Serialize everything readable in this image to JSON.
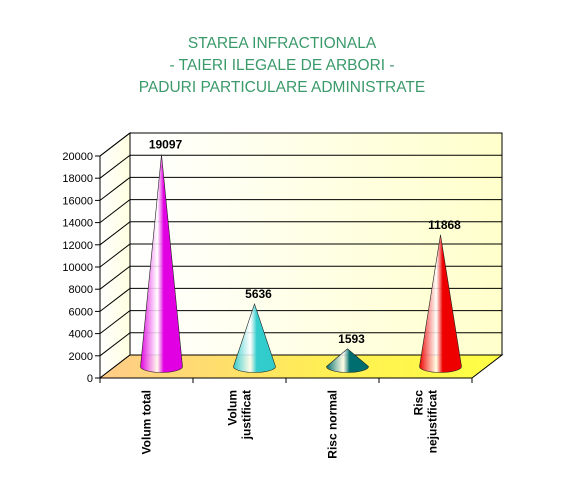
{
  "chart_data": {
    "type": "bar",
    "bar_shape": "cone",
    "title_lines": [
      "STAREA INFRACTIONALA",
      "- TAIERI ILEGALE DE ARBORI -",
      "PADURI PARTICULARE ADMINISTRATE"
    ],
    "categories": [
      [
        "Volum total"
      ],
      [
        "Volum",
        "justificat"
      ],
      [
        "Risc normal"
      ],
      [
        "Risc",
        "nejustificat"
      ]
    ],
    "values": [
      19097,
      5636,
      1593,
      11868
    ],
    "data_labels": [
      "19097",
      "5636",
      "1593",
      "11868"
    ],
    "colors": [
      "#e100e1",
      "#33cccc",
      "#006e6e",
      "#ee0000"
    ],
    "ylim": [
      0,
      20000
    ],
    "yticks": [
      0,
      2000,
      4000,
      6000,
      8000,
      10000,
      12000,
      14000,
      16000,
      18000,
      20000
    ],
    "grid": true,
    "legend": "none",
    "back_wall_color": "#ffffcc",
    "floor_color": "#ffff44",
    "title_color": "#3a9a6a"
  }
}
